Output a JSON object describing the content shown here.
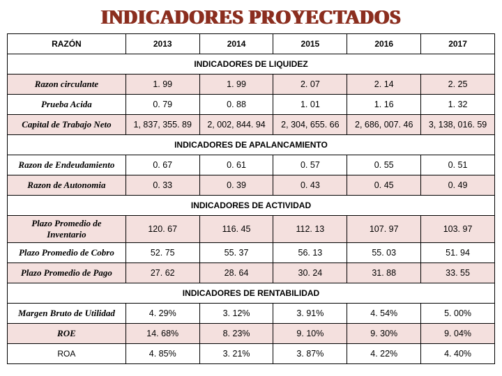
{
  "title": "INDICADORES PROYECTADOS",
  "columns_label": "RAZÓN",
  "years": [
    "2013",
    "2014",
    "2015",
    "2016",
    "2017"
  ],
  "colors": {
    "title": "#8b2e1f",
    "band": "#f4e0de",
    "border": "#000000",
    "bg": "#ffffff"
  },
  "fontsize": {
    "title": 28,
    "body": 13,
    "header": 12
  },
  "sections": [
    {
      "header": "INDICADORES DE LIQUIDEZ",
      "header_span": 3,
      "rows": [
        {
          "label": "Razon circulante",
          "band": true,
          "values": [
            "1. 99",
            "1. 99",
            "2. 07",
            "2. 14",
            "2. 25"
          ]
        },
        {
          "label": "Prueba Acida",
          "band": false,
          "values": [
            "0. 79",
            "0. 88",
            "1. 01",
            "1. 16",
            "1. 32"
          ]
        },
        {
          "label": "Capital de Trabajo Neto",
          "band": true,
          "values": [
            "1, 837, 355. 89",
            "2, 002, 844. 94",
            "2, 304, 655. 66",
            "2, 686, 007. 46",
            "3, 138, 016. 59"
          ]
        }
      ]
    },
    {
      "header": "INDICADORES DE APALANCAMIENTO",
      "header_span": 3,
      "rows": [
        {
          "label": "Razon de Endeudamiento",
          "band": false,
          "values": [
            "0. 67",
            "0. 61",
            "0. 57",
            "0. 55",
            "0. 51"
          ]
        },
        {
          "label": "Razon de Autonomia",
          "band": true,
          "values": [
            "0. 33",
            "0. 39",
            "0. 43",
            "0. 45",
            "0. 49"
          ]
        }
      ]
    },
    {
      "header": "INDICADORES DE ACTIVIDAD",
      "header_span": 6,
      "rows": [
        {
          "label": "Plazo Promedio de Inventario",
          "band": true,
          "values": [
            "120. 67",
            "116. 45",
            "112. 13",
            "107. 97",
            "103. 97"
          ]
        },
        {
          "label": "Plazo Promedio de Cobro",
          "band": false,
          "values": [
            "52. 75",
            "55. 37",
            "56. 13",
            "55. 03",
            "51. 94"
          ]
        },
        {
          "label": "Plazo Promedio de Pago",
          "band": true,
          "values": [
            "27. 62",
            "28. 64",
            "30. 24",
            "31. 88",
            "33. 55"
          ]
        }
      ]
    },
    {
      "header": "INDICADORES DE RENTABILIDAD",
      "header_span": 6,
      "rows": [
        {
          "label": "Margen Bruto de Utilidad",
          "band": false,
          "values": [
            "4. 29%",
            "3. 12%",
            "3. 91%",
            "4. 54%",
            "5. 00%"
          ]
        },
        {
          "label": "ROE",
          "band": true,
          "values": [
            "14. 68%",
            "8. 23%",
            "9. 10%",
            "9. 30%",
            "9. 04%"
          ]
        },
        {
          "label": "ROA",
          "label_normal": true,
          "band": false,
          "values": [
            "4. 85%",
            "3. 21%",
            "3. 87%",
            "4. 22%",
            "4. 40%"
          ]
        }
      ]
    }
  ]
}
